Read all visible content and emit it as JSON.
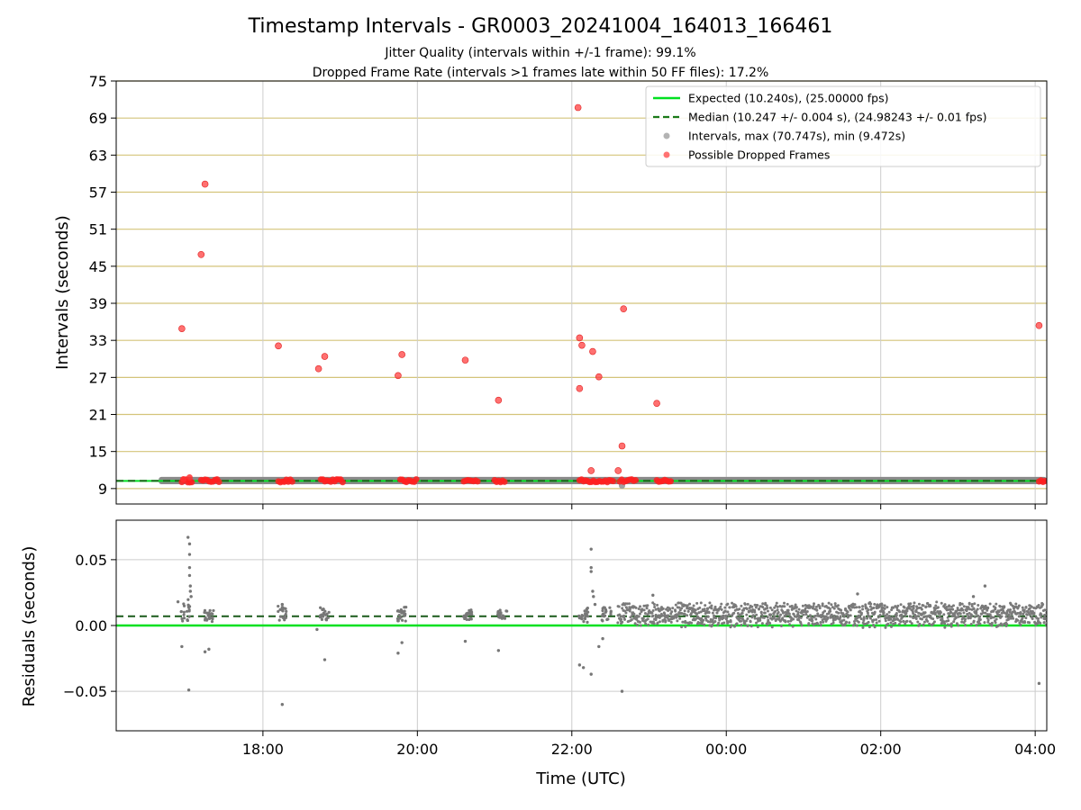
{
  "chart_data": [
    {
      "type": "scatter",
      "panel": "intervals",
      "title": "Timestamp Intervals - GR0003_20241004_164013_166461",
      "subtitle_1": "Jitter Quality (intervals within +/-1 frame): 99.1%",
      "subtitle_2": "Dropped Frame Rate (intervals >1 frames late within 50 FF files): 17.2%",
      "xlabel": "",
      "ylabel": "Intervals (seconds)",
      "ylim": [
        6.5,
        75
      ],
      "yticks": [
        "9",
        "15",
        "21",
        "27",
        "33",
        "39",
        "45",
        "51",
        "57",
        "63",
        "69",
        "75"
      ],
      "ytick_values": [
        9,
        15,
        21,
        27,
        33,
        39,
        45,
        51,
        57,
        63,
        69,
        75
      ],
      "xlim_hours": [
        16.1,
        28.15
      ],
      "grid": "horizontal golden lines, vertical grey lines",
      "legend_placement": "upper right",
      "expected_interval": 10.24,
      "median_interval": 10.247,
      "legend": [
        {
          "label": "Expected (10.240s), (25.00000 fps)",
          "style": "solid-line",
          "color": "#00e020"
        },
        {
          "label": "Median (10.247 +/- 0.004 s), (24.98243 +/- 0.01 fps)",
          "style": "dashed-line",
          "color": "#1a7a1a"
        },
        {
          "label": "Intervals, max (70.747s), min (9.472s)",
          "style": "marker",
          "color": "#a0a0a0"
        },
        {
          "label": "Possible Dropped Frames",
          "style": "marker",
          "color": "#ff5050"
        }
      ],
      "interval_band": {
        "x_start_hours": 16.65,
        "x_end_hours": 28.15,
        "y_min": 10.0,
        "y_max": 10.6,
        "min_point": [
          22.65,
          9.47
        ]
      },
      "dropped_frames": [
        [
          16.95,
          34.9
        ],
        [
          17.25,
          58.3
        ],
        [
          17.2,
          46.9
        ],
        [
          18.2,
          32.1
        ],
        [
          18.72,
          28.4
        ],
        [
          18.8,
          30.4
        ],
        [
          19.75,
          27.3
        ],
        [
          19.8,
          30.7
        ],
        [
          20.62,
          29.8
        ],
        [
          21.05,
          23.3
        ],
        [
          22.08,
          70.7
        ],
        [
          22.1,
          33.4
        ],
        [
          22.1,
          25.2
        ],
        [
          22.13,
          32.2
        ],
        [
          22.27,
          31.2
        ],
        [
          22.35,
          27.1
        ],
        [
          22.25,
          11.9
        ],
        [
          22.6,
          11.9
        ],
        [
          22.65,
          15.9
        ],
        [
          22.67,
          38.1
        ],
        [
          23.1,
          22.8
        ],
        [
          28.05,
          35.4
        ]
      ],
      "dropped_frame_clusters": [
        [
          16.95,
          17.1
        ],
        [
          17.2,
          17.45
        ],
        [
          18.2,
          18.4
        ],
        [
          18.75,
          19.05
        ],
        [
          19.78,
          20.0
        ],
        [
          20.6,
          20.78
        ],
        [
          21.0,
          21.15
        ],
        [
          22.1,
          22.55
        ],
        [
          22.62,
          22.85
        ],
        [
          23.1,
          23.3
        ],
        [
          28.05,
          28.15
        ]
      ]
    },
    {
      "type": "scatter",
      "panel": "residuals",
      "xlabel": "Time (UTC)",
      "ylabel": "Residuals (seconds)",
      "ylim": [
        -0.08,
        0.08
      ],
      "yticks": [
        "−0.05",
        "0.00",
        "0.05"
      ],
      "ytick_values": [
        -0.05,
        0.0,
        0.05
      ],
      "xticks": [
        "18:00",
        "20:00",
        "22:00",
        "00:00",
        "02:00",
        "04:00"
      ],
      "xtick_values_hours": [
        18,
        20,
        22,
        24,
        26,
        28
      ],
      "expected_residual": 0.0,
      "median_residual": 0.007,
      "sparse_clusters": [
        {
          "x": 17.0,
          "y_min": 0.003,
          "y_max": 0.02
        },
        {
          "x": 17.3,
          "y_min": 0.003,
          "y_max": 0.012
        },
        {
          "x": 18.25,
          "y_min": 0.004,
          "y_max": 0.015
        },
        {
          "x": 18.8,
          "y_min": 0.004,
          "y_max": 0.014
        },
        {
          "x": 19.8,
          "y_min": 0.003,
          "y_max": 0.014
        },
        {
          "x": 20.65,
          "y_min": 0.004,
          "y_max": 0.012
        },
        {
          "x": 21.1,
          "y_min": 0.004,
          "y_max": 0.012
        },
        {
          "x": 22.15,
          "y_min": 0.002,
          "y_max": 0.016
        },
        {
          "x": 22.45,
          "y_min": 0.003,
          "y_max": 0.014
        }
      ],
      "dense_band": {
        "x_start_hours": 22.6,
        "x_end_hours": 28.15,
        "y_min": 0.0,
        "y_max": 0.016
      },
      "outliers": [
        [
          16.9,
          0.018
        ],
        [
          16.95,
          -0.016
        ],
        [
          17.03,
          0.067
        ],
        [
          17.05,
          0.062
        ],
        [
          17.05,
          0.054
        ],
        [
          17.05,
          0.044
        ],
        [
          17.05,
          0.038
        ],
        [
          17.06,
          0.03
        ],
        [
          17.06,
          0.026
        ],
        [
          17.07,
          0.022
        ],
        [
          17.04,
          -0.049
        ],
        [
          17.25,
          -0.02
        ],
        [
          17.3,
          -0.018
        ],
        [
          18.25,
          0.016
        ],
        [
          18.25,
          -0.06
        ],
        [
          18.7,
          -0.003
        ],
        [
          18.8,
          -0.026
        ],
        [
          19.75,
          -0.021
        ],
        [
          19.8,
          -0.013
        ],
        [
          20.62,
          -0.012
        ],
        [
          21.05,
          -0.019
        ],
        [
          22.1,
          -0.03
        ],
        [
          22.15,
          -0.032
        ],
        [
          22.25,
          0.058
        ],
        [
          22.25,
          0.044
        ],
        [
          22.25,
          0.041
        ],
        [
          22.27,
          0.026
        ],
        [
          22.28,
          0.022
        ],
        [
          22.3,
          0.016
        ],
        [
          22.25,
          -0.037
        ],
        [
          22.35,
          -0.016
        ],
        [
          22.4,
          -0.01
        ],
        [
          22.65,
          -0.05
        ],
        [
          23.05,
          0.023
        ],
        [
          25.7,
          0.024
        ],
        [
          27.35,
          0.03
        ],
        [
          27.2,
          0.022
        ],
        [
          28.05,
          -0.044
        ]
      ]
    }
  ]
}
